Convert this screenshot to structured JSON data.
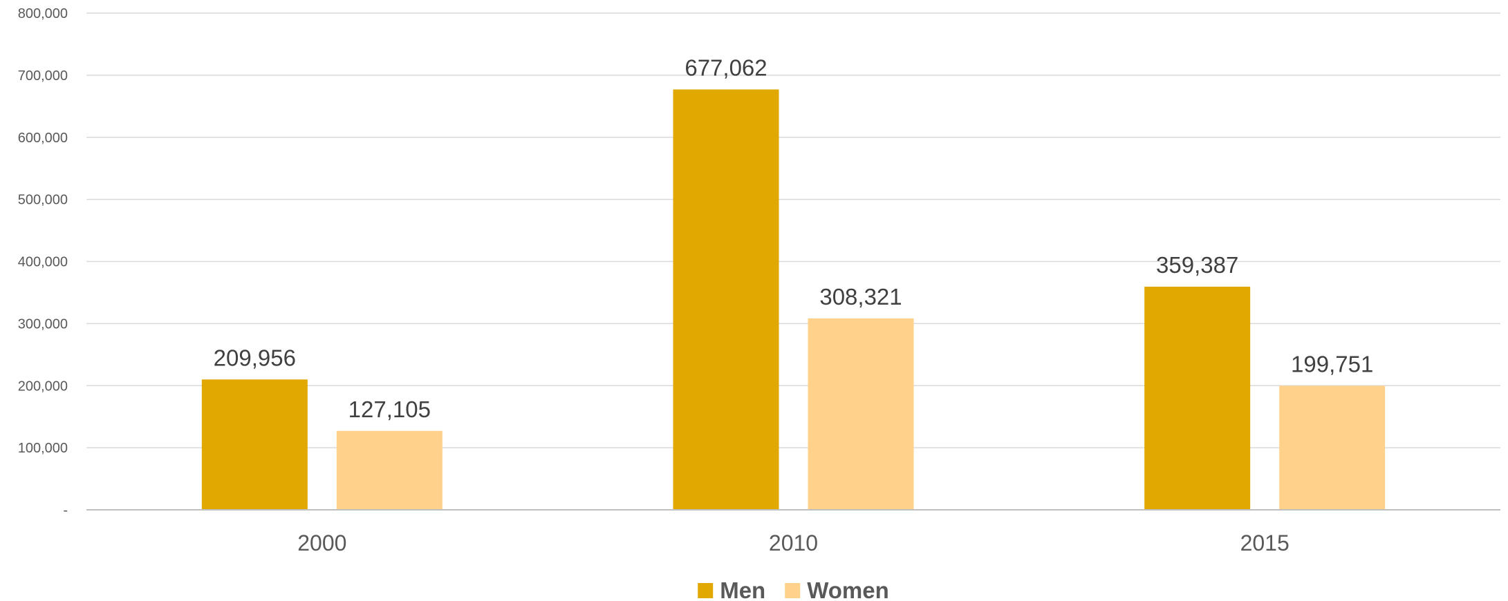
{
  "chart_data": {
    "type": "bar",
    "title": "",
    "xlabel": "",
    "ylabel": "",
    "categories": [
      "2000",
      "2010",
      "2015"
    ],
    "series": [
      {
        "name": "Men",
        "color": "#E0A800",
        "values": [
          209956,
          677062,
          359387
        ],
        "labels": [
          "209,956",
          "677,062",
          "359,387"
        ]
      },
      {
        "name": "Women",
        "color": "#FFD18A",
        "values": [
          127105,
          308321,
          199751
        ],
        "labels": [
          "127,105",
          "308,321",
          "199,751"
        ]
      }
    ],
    "ylim": [
      0,
      800000
    ],
    "yticks": [
      {
        "value": 0,
        "label": "-"
      },
      {
        "value": 100000,
        "label": "100,000"
      },
      {
        "value": 200000,
        "label": "200,000"
      },
      {
        "value": 300000,
        "label": "300,000"
      },
      {
        "value": 400000,
        "label": "400,000"
      },
      {
        "value": 500000,
        "label": "500,000"
      },
      {
        "value": 600000,
        "label": "600,000"
      },
      {
        "value": 700000,
        "label": "700,000"
      },
      {
        "value": 800000,
        "label": "800,000"
      }
    ],
    "grid": true,
    "legend_position": "bottom"
  }
}
